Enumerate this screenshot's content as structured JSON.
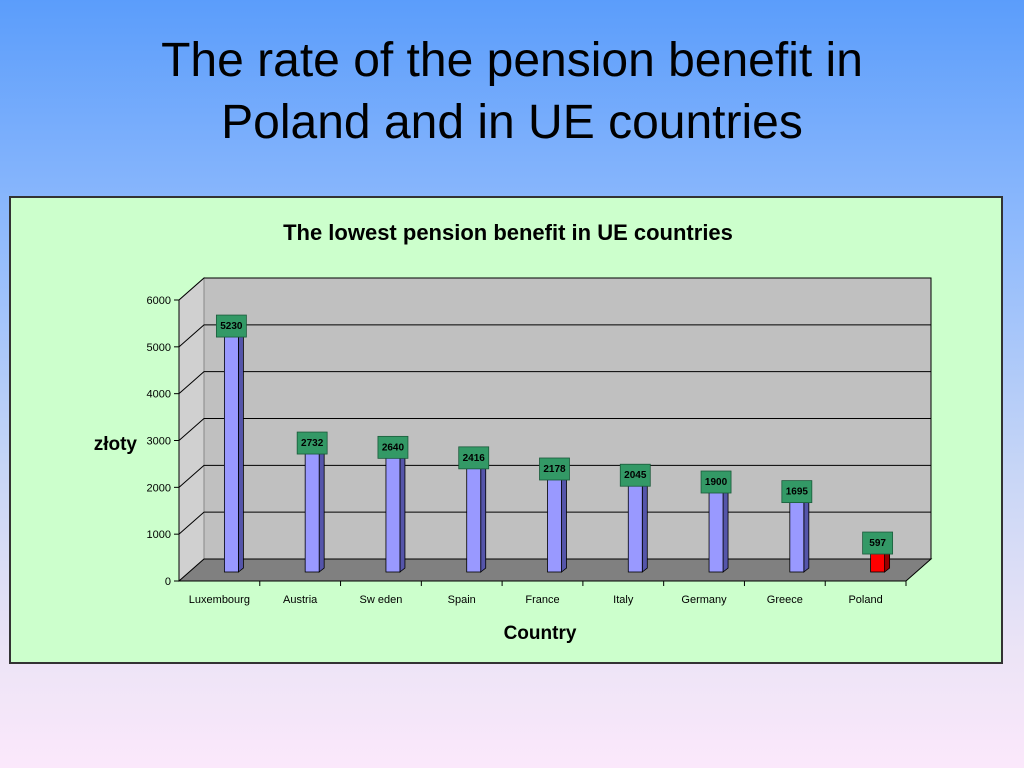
{
  "slide": {
    "title_line1": "The rate of the pension benefit in",
    "title_line2": "Poland and in UE countries"
  },
  "chart_data": {
    "type": "bar",
    "title": "The lowest pension benefit in UE countries",
    "xlabel": "Country",
    "ylabel": "złoty",
    "categories": [
      "Luxembourg",
      "Austria",
      "Sw eden",
      "Spain",
      "France",
      "Italy",
      "Germany",
      "Greece",
      "Poland"
    ],
    "values": [
      5230,
      2732,
      2640,
      2416,
      2178,
      2045,
      1900,
      1695,
      597
    ],
    "ylim": [
      0,
      6000
    ],
    "yticks": [
      0,
      1000,
      2000,
      3000,
      4000,
      5000,
      6000
    ],
    "grid": true,
    "legend": "none",
    "three_d": true,
    "colors": {
      "bar": "#9999ff",
      "bar_side": "#5555aa",
      "highlight_bar": "#ff0000",
      "highlight_side": "#990000",
      "label_box": "#339966",
      "plot_back": "#c0c0c0",
      "plot_floor": "#808080",
      "panel": "#ccffcc"
    },
    "highlight_category": "Poland"
  }
}
